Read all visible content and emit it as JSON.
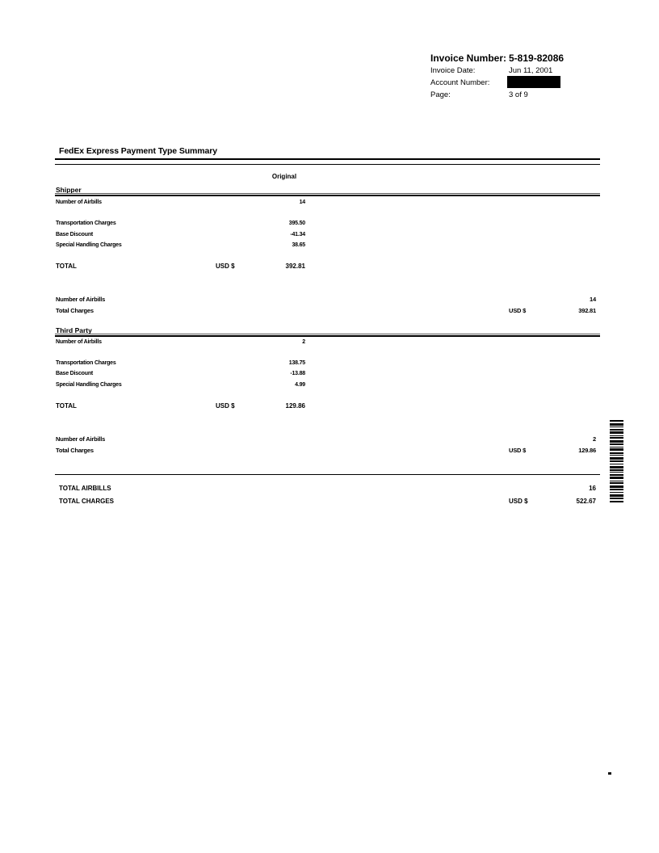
{
  "header": {
    "invoice_number_label": "Invoice Number:",
    "invoice_number": "5-819-82086",
    "invoice_date_label": "Invoice Date:",
    "invoice_date": "Jun 11, 2001",
    "account_number_label": "Account Number:",
    "account_number_redacted": true,
    "page_label": "Page:",
    "page": "3 of 9"
  },
  "title": "FedEx Express Payment Type Summary",
  "column_header": "Original",
  "sections": [
    {
      "name": "Shipper",
      "airbills_label": "Number of Airbills",
      "airbills": "14",
      "rows": [
        {
          "label": "Transportation Charges",
          "value": "395.50"
        },
        {
          "label": "Base Discount",
          "value": "-41.34"
        },
        {
          "label": "Special Handling Charges",
          "value": "38.65"
        }
      ],
      "total_label": "TOTAL",
      "currency": "USD $",
      "total": "392.81",
      "summary_airbills_label": "Number of Airbills",
      "summary_airbills": "14",
      "summary_charges_label": "Total Charges",
      "summary_currency": "USD $",
      "summary_total": "392.81"
    },
    {
      "name": "Third Party",
      "airbills_label": "Number of Airbills",
      "airbills": "2",
      "rows": [
        {
          "label": "Transportation Charges",
          "value": "138.75"
        },
        {
          "label": "Base Discount",
          "value": "-13.88"
        },
        {
          "label": "Special Handling Charges",
          "value": "4.99"
        }
      ],
      "total_label": "TOTAL",
      "currency": "USD $",
      "total": "129.86",
      "summary_airbills_label": "Number of Airbills",
      "summary_airbills": "2",
      "summary_charges_label": "Total Charges",
      "summary_currency": "USD $",
      "summary_total": "129.86"
    }
  ],
  "grand_total": {
    "airbills_label": "TOTAL AIRBILLS",
    "airbills": "16",
    "charges_label": "TOTAL CHARGES",
    "currency": "USD $",
    "charges": "522.67"
  },
  "colors": {
    "ink": "#000000",
    "redaction": "#000000"
  },
  "barcode": {
    "name": "vertical-barcode",
    "pattern": [
      2,
      2,
      3,
      1,
      1,
      2,
      2,
      1,
      3,
      2,
      1,
      1,
      2,
      2,
      3,
      1,
      2,
      2,
      1,
      1,
      3,
      2,
      2,
      1,
      1,
      2,
      3,
      1,
      2,
      2,
      1,
      2,
      3,
      1,
      2,
      1,
      1,
      2,
      2,
      1,
      3,
      2,
      1,
      1,
      2,
      2,
      3,
      1,
      2,
      2,
      1,
      2,
      3,
      1,
      2,
      2,
      2,
      1
    ]
  }
}
